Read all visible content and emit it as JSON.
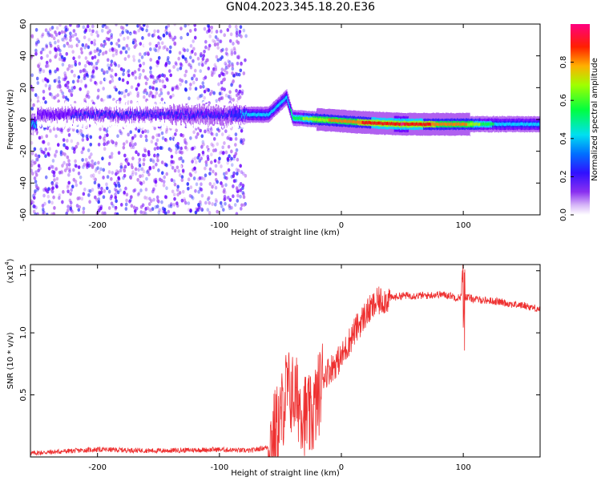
{
  "title": "GN04.2023.345.18.20.E36",
  "chart_data": [
    {
      "type": "heatmap",
      "xlabel": "Height of straight line (km)",
      "ylabel": "Frequency (Hz)",
      "xlim": [
        -255,
        163
      ],
      "ylim": [
        -60,
        60
      ],
      "x_ticks": [
        -200,
        -100,
        0,
        100
      ],
      "x_tick_labels": [
        "-200",
        "-100",
        "0",
        "100"
      ],
      "y_ticks": [
        -60,
        -40,
        -20,
        0,
        20,
        40,
        60
      ],
      "y_tick_labels": [
        "-60",
        "-40",
        "-20",
        "0",
        "20",
        "40",
        "60"
      ],
      "colorbar": {
        "label": "Normalized spectral amplitude",
        "range": [
          0,
          1
        ],
        "ticks": [
          0,
          0.2,
          0.4,
          0.6,
          0.8
        ],
        "tick_labels": [
          "0.0",
          "0.2",
          "0.4",
          "0.6",
          "0.8"
        ],
        "colors": [
          "#ffffff",
          "#b060f0",
          "#6a00ff",
          "#2020ff",
          "#00e0ff",
          "#00ff40",
          "#a0ff00",
          "#ff8000",
          "#ff0000",
          "#ff0080"
        ]
      },
      "ridge": [
        {
          "x": -250,
          "freq": 3,
          "amp": 0.25
        },
        {
          "x": -200,
          "freq": 3,
          "amp": 0.3
        },
        {
          "x": -150,
          "freq": 3,
          "amp": 0.3
        },
        {
          "x": -100,
          "freq": 3,
          "amp": 0.35
        },
        {
          "x": -78,
          "freq": 3,
          "amp": 0.4
        },
        {
          "x": -60,
          "freq": 3,
          "amp": 0.45
        },
        {
          "x": -45,
          "freq": 14,
          "amp": 0.45
        },
        {
          "x": -40,
          "freq": 1,
          "amp": 0.55
        },
        {
          "x": -20,
          "freq": 0,
          "amp": 0.7
        },
        {
          "x": 0,
          "freq": -1,
          "amp": 0.75
        },
        {
          "x": 20,
          "freq": -2,
          "amp": 0.85
        },
        {
          "x": 50,
          "freq": -3,
          "amp": 0.95
        },
        {
          "x": 80,
          "freq": -3,
          "amp": 0.8
        },
        {
          "x": 100,
          "freq": -3,
          "amp": 0.75
        },
        {
          "x": 130,
          "freq": -3,
          "amp": 0.45
        },
        {
          "x": 163,
          "freq": -3,
          "amp": 0.4
        }
      ],
      "noise_region": {
        "x_from": -255,
        "x_to": -78,
        "amp": 0.3
      }
    },
    {
      "type": "line",
      "xlabel": "Height of straight line (km)",
      "ylabel": "SNR (10 * v/v)",
      "y_scale_label": "(x10",
      "y_scale_exponent": "4",
      "xlim": [
        -255,
        163
      ],
      "ylim": [
        0,
        1.55
      ],
      "x_ticks": [
        -200,
        -100,
        0,
        100
      ],
      "x_tick_labels": [
        "-200",
        "-100",
        "0",
        "100"
      ],
      "y_ticks": [
        0.5,
        1.0,
        1.5
      ],
      "y_tick_labels": [
        "0.5",
        "1.0",
        "1.5"
      ],
      "color": "#ee3030",
      "series": [
        {
          "x": [
            -255,
            -200,
            -150,
            -100,
            -75,
            -60,
            -55,
            -50,
            -45,
            -40,
            -35,
            -30,
            -25,
            -20,
            -15,
            -10,
            -5,
            0,
            5,
            10,
            20,
            30,
            40,
            50,
            60,
            70,
            80,
            90,
            95,
            100,
            105,
            110,
            120,
            130,
            140,
            150,
            163
          ],
          "y": [
            0.03,
            0.06,
            0.05,
            0.06,
            0.05,
            0.08,
            0.2,
            0.3,
            0.55,
            0.5,
            0.45,
            0.35,
            0.3,
            0.45,
            0.65,
            0.7,
            0.75,
            0.8,
            0.9,
            1.0,
            1.15,
            1.25,
            1.28,
            1.3,
            1.3,
            1.3,
            1.31,
            1.3,
            1.28,
            1.3,
            1.28,
            1.27,
            1.26,
            1.25,
            1.23,
            1.22,
            1.19
          ]
        }
      ]
    }
  ]
}
